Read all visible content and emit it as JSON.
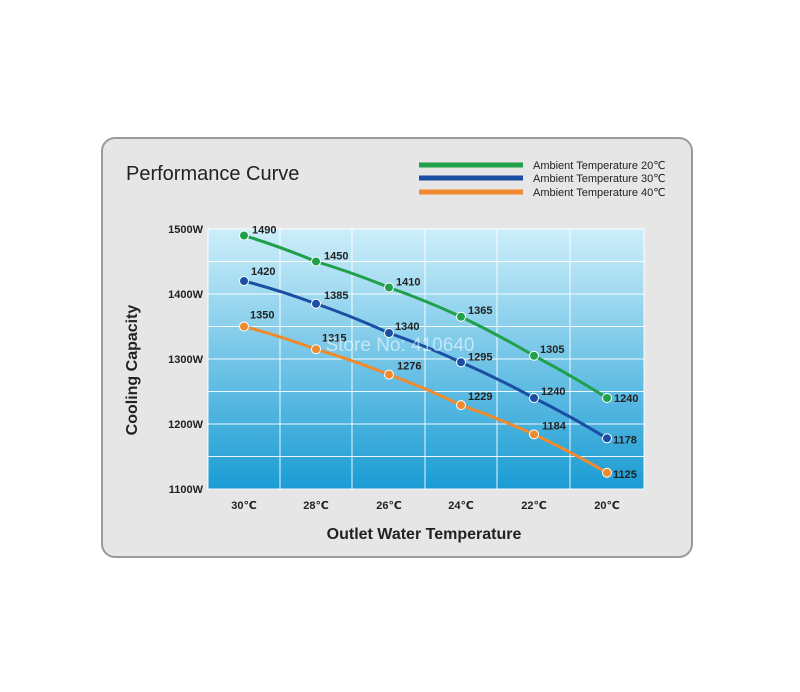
{
  "chart_data": {
    "type": "line",
    "title": "Performance Curve",
    "xlabel": "Outlet Water Temperature",
    "ylabel": "Cooling Capacity",
    "categories": [
      "30℃",
      "28℃",
      "26℃",
      "24℃",
      "22℃",
      "20℃"
    ],
    "yticks": [
      "1100W",
      "1200W",
      "1300W",
      "1400W",
      "1500W"
    ],
    "ylim": [
      1100,
      1500
    ],
    "grid": true,
    "legend_position": "top-right",
    "series": [
      {
        "name": "Ambient Temperature 20℃",
        "color": "#21a04c",
        "values": [
          1490,
          1450,
          1410,
          1365,
          1305,
          1240
        ],
        "labels": [
          "1490",
          "1450",
          "1410",
          "1365",
          "1305",
          "1240"
        ]
      },
      {
        "name": "Ambient Temperature 30℃",
        "color": "#1a4fa3",
        "values": [
          1420,
          1385,
          1340,
          1295,
          1240,
          1178
        ],
        "labels": [
          "1420",
          "1385",
          "1340",
          "1295",
          "1240",
          "1178"
        ]
      },
      {
        "name": "Ambient Temperature 40℃",
        "color": "#ef8a2e",
        "values": [
          1350,
          1315,
          1276,
          1229,
          1184,
          1125
        ],
        "labels": [
          "1350",
          "1315",
          "1276",
          "1229",
          "1184",
          "1125"
        ]
      }
    ]
  },
  "watermark": "Store No: 410640"
}
